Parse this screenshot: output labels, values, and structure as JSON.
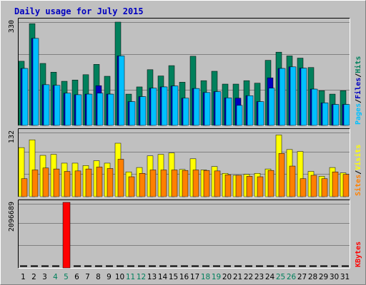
{
  "chart_data": {
    "type": "bar",
    "title": "Daily usage for July 2015",
    "categories": [
      "1",
      "2",
      "3",
      "4",
      "5",
      "6",
      "7",
      "8",
      "9",
      "10",
      "11",
      "12",
      "13",
      "14",
      "15",
      "16",
      "17",
      "18",
      "19",
      "20",
      "21",
      "22",
      "23",
      "24",
      "25",
      "26",
      "27",
      "28",
      "29",
      "30",
      "31"
    ],
    "weekend_days": [
      "4",
      "5",
      "11",
      "12",
      "18",
      "19",
      "25",
      "26"
    ],
    "panels": [
      {
        "name": "top",
        "ymax": 330,
        "ytick_label": "330",
        "legend": [
          {
            "text": "Pages",
            "color": "#00c0ff"
          },
          {
            "text": "/",
            "color": "#000000"
          },
          {
            "text": "Files",
            "color": "#0000c0"
          },
          {
            "text": "/",
            "color": "#000000"
          },
          {
            "text": "Hits",
            "color": "#00805c"
          }
        ],
        "series": [
          {
            "name": "Hits",
            "color": "#00805c",
            "values": [
              205,
              325,
              198,
              170,
              141,
              145,
              162,
              195,
              157,
              330,
              100,
              123,
              178,
              158,
              191,
              138,
              221,
              143,
              173,
              132,
              132,
              143,
              135,
              208,
              234,
              222,
              215,
              185,
              111,
              100,
              111
            ]
          },
          {
            "name": "Files",
            "color": "#0000c0",
            "values": [
              182,
              278,
              130,
              128,
              103,
              98,
              100,
              127,
              100,
              222,
              76,
              92,
              119,
              123,
              126,
              87,
              118,
              105,
              108,
              88,
              87,
              95,
              76,
              152,
              182,
              187,
              183,
              116,
              72,
              67,
              67
            ]
          },
          {
            "name": "Pages",
            "color": "#00c0ff",
            "values": [
              182,
              278,
              130,
              128,
              103,
              98,
              100,
              103,
              100,
              222,
              76,
              92,
              119,
              123,
              126,
              87,
              118,
              105,
              108,
              88,
              64,
              95,
              76,
              119,
              182,
              187,
              183,
              116,
              72,
              67,
              67
            ]
          }
        ]
      },
      {
        "name": "middle",
        "ymax": 132,
        "ytick_label": "132",
        "legend": [
          {
            "text": "Sites",
            "color": "#ff8000"
          },
          {
            "text": "/",
            "color": "#000000"
          },
          {
            "text": "Visits",
            "color": "#ffff00"
          }
        ],
        "series": [
          {
            "name": "Visits",
            "color": "#ffff00",
            "values": [
              101,
              117,
              85,
              87,
              69,
              69,
              64,
              74,
              69,
              110,
              51,
              60,
              84,
              87,
              90,
              56,
              78,
              55,
              62,
              48,
              44,
              46,
              48,
              57,
              127,
              97,
              93,
              52,
              42,
              60,
              49
            ]
          },
          {
            "name": "Sites",
            "color": "#ff8000",
            "values": [
              37,
              55,
              59,
              57,
              52,
              53,
              57,
              61,
              58,
              77,
              41,
              48,
              55,
              55,
              55,
              54,
              55,
              54,
              53,
              45,
              44,
              42,
              41,
              54,
              89,
              63,
              37,
              44,
              37,
              51,
              46
            ]
          }
        ]
      },
      {
        "name": "bottom",
        "ymax": 2096689,
        "ytick_label": "2096689",
        "legend": [
          {
            "text": "KBytes",
            "color": "#ff0000"
          }
        ],
        "series": [
          {
            "name": "KBytes",
            "color": "#ff0000",
            "values": [
              0,
              0,
              0,
              0,
              2096689,
              0,
              0,
              0,
              0,
              0,
              0,
              0,
              0,
              0,
              0,
              0,
              0,
              0,
              0,
              0,
              0,
              0,
              0,
              0,
              0,
              0,
              0,
              0,
              0,
              0,
              0
            ]
          }
        ]
      }
    ]
  }
}
